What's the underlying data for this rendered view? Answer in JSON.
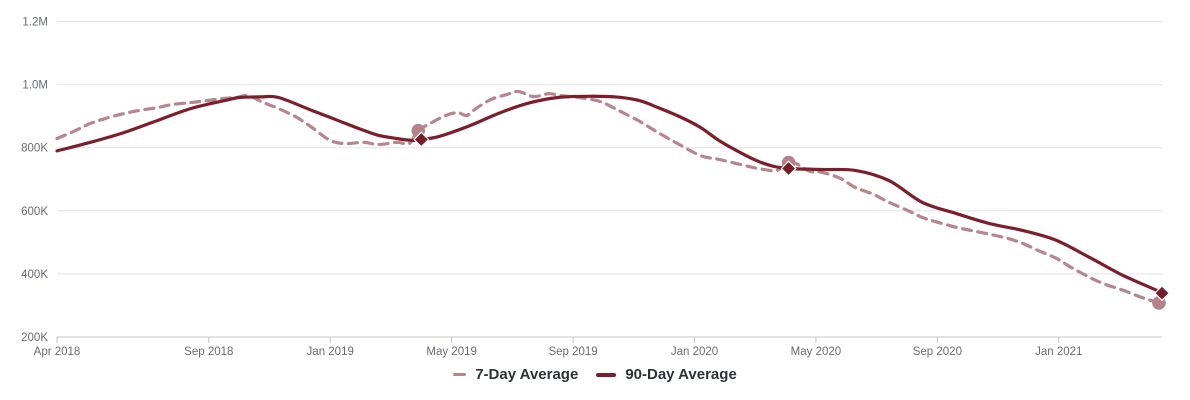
{
  "chart_data": {
    "type": "line",
    "title": "",
    "xlabel": "",
    "ylabel": "",
    "grid": true,
    "legend_position": "bottom-center",
    "x_axis": {
      "unit": "months since Apr 2018",
      "domain": [
        0,
        36.4
      ],
      "ticks": [
        {
          "m": 0,
          "label": "Apr 2018"
        },
        {
          "m": 5,
          "label": "Sep 2018"
        },
        {
          "m": 9,
          "label": "Jan 2019"
        },
        {
          "m": 13,
          "label": "May 2019"
        },
        {
          "m": 17,
          "label": "Sep 2019"
        },
        {
          "m": 21,
          "label": "Jan 2020"
        },
        {
          "m": 25,
          "label": "May 2020"
        },
        {
          "m": 29,
          "label": "Sep 2020"
        },
        {
          "m": 33,
          "label": "Jan 2021"
        }
      ]
    },
    "y_axis": {
      "domain": [
        200000,
        1200000
      ],
      "ticks": [
        {
          "v": 200000,
          "label": "200K"
        },
        {
          "v": 400000,
          "label": "400K"
        },
        {
          "v": 600000,
          "label": "600K"
        },
        {
          "v": 800000,
          "label": "800K"
        },
        {
          "v": 1000000,
          "label": "1.0M"
        },
        {
          "v": 1200000,
          "label": "1.2M"
        }
      ]
    },
    "colors": {
      "grid": "#e4e4e4",
      "axis": "#c6c6c6",
      "axis_text": "#686c71",
      "legend_text": "#2e3237"
    },
    "series": [
      {
        "name": "7-Day Average",
        "style": "dashed",
        "color": "#b5868e",
        "marker": "circle",
        "marker_color": "#b2838b",
        "points": [
          [
            0,
            829000
          ],
          [
            0.6,
            854000
          ],
          [
            1.1,
            877000
          ],
          [
            1.6,
            893000
          ],
          [
            2.2,
            908000
          ],
          [
            2.7,
            918000
          ],
          [
            3.3,
            927000
          ],
          [
            3.8,
            937000
          ],
          [
            4.4,
            943000
          ],
          [
            4.9,
            949000
          ],
          [
            5.5,
            956000
          ],
          [
            5.9,
            959000
          ],
          [
            6.3,
            965000
          ],
          [
            6.8,
            943000
          ],
          [
            7.3,
            924000
          ],
          [
            7.9,
            896000
          ],
          [
            8.4,
            864000
          ],
          [
            9.0,
            823000
          ],
          [
            9.5,
            813000
          ],
          [
            10.1,
            817000
          ],
          [
            10.6,
            810000
          ],
          [
            11.2,
            817000
          ],
          [
            11.6,
            813000
          ],
          [
            11.9,
            854000
          ],
          [
            12.3,
            877000
          ],
          [
            12.8,
            902000
          ],
          [
            13.2,
            911000
          ],
          [
            13.5,
            902000
          ],
          [
            13.8,
            924000
          ],
          [
            14.3,
            953000
          ],
          [
            14.8,
            968000
          ],
          [
            15.2,
            978000
          ],
          [
            15.7,
            962000
          ],
          [
            16.2,
            971000
          ],
          [
            16.6,
            965000
          ],
          [
            17.2,
            959000
          ],
          [
            17.9,
            946000
          ],
          [
            18.5,
            918000
          ],
          [
            19.2,
            883000
          ],
          [
            19.8,
            848000
          ],
          [
            20.5,
            810000
          ],
          [
            21.2,
            775000
          ],
          [
            21.8,
            763000
          ],
          [
            22.5,
            747000
          ],
          [
            23.1,
            734000
          ],
          [
            23.7,
            728000
          ],
          [
            24.1,
            753000
          ],
          [
            24.4,
            747000
          ],
          [
            24.8,
            725000
          ],
          [
            25.2,
            722000
          ],
          [
            25.8,
            703000
          ],
          [
            26.3,
            674000
          ],
          [
            26.9,
            652000
          ],
          [
            27.4,
            627000
          ],
          [
            28.0,
            602000
          ],
          [
            28.5,
            579000
          ],
          [
            29.0,
            564000
          ],
          [
            29.6,
            548000
          ],
          [
            30.1,
            538000
          ],
          [
            30.7,
            526000
          ],
          [
            31.3,
            513000
          ],
          [
            31.8,
            497000
          ],
          [
            32.3,
            475000
          ],
          [
            32.9,
            450000
          ],
          [
            33.4,
            421000
          ],
          [
            34.0,
            390000
          ],
          [
            34.5,
            368000
          ],
          [
            35.1,
            349000
          ],
          [
            35.6,
            330000
          ],
          [
            36.0,
            317000
          ],
          [
            36.3,
            308000
          ]
        ],
        "highlight_points": [
          [
            11.9,
            854000
          ],
          [
            24.1,
            753000
          ],
          [
            36.3,
            308000
          ]
        ]
      },
      {
        "name": "90-Day Average",
        "style": "solid",
        "color": "#7d1e2d",
        "marker": "diamond",
        "marker_color": "#771c29",
        "points": [
          [
            0,
            790000
          ],
          [
            1.1,
            817000
          ],
          [
            2.2,
            848000
          ],
          [
            3.3,
            886000
          ],
          [
            4.4,
            924000
          ],
          [
            5.5,
            949000
          ],
          [
            6.0,
            959000
          ],
          [
            6.7,
            961000
          ],
          [
            7.3,
            959000
          ],
          [
            8.4,
            918000
          ],
          [
            9.0,
            896000
          ],
          [
            9.5,
            877000
          ],
          [
            10.1,
            855000
          ],
          [
            10.6,
            839000
          ],
          [
            11.2,
            829000
          ],
          [
            11.7,
            823000
          ],
          [
            12.0,
            826000
          ],
          [
            12.6,
            836000
          ],
          [
            13.6,
            870000
          ],
          [
            14.6,
            911000
          ],
          [
            15.6,
            943000
          ],
          [
            16.5,
            959000
          ],
          [
            17.5,
            963000
          ],
          [
            18.5,
            960000
          ],
          [
            19.2,
            949000
          ],
          [
            19.8,
            927000
          ],
          [
            20.5,
            899000
          ],
          [
            21.2,
            864000
          ],
          [
            21.8,
            823000
          ],
          [
            22.5,
            785000
          ],
          [
            23.1,
            757000
          ],
          [
            23.6,
            741000
          ],
          [
            24.1,
            734000
          ],
          [
            25.2,
            731000
          ],
          [
            26.3,
            728000
          ],
          [
            27.4,
            696000
          ],
          [
            28.5,
            627000
          ],
          [
            29.6,
            592000
          ],
          [
            30.7,
            560000
          ],
          [
            31.8,
            538000
          ],
          [
            32.9,
            507000
          ],
          [
            34.0,
            453000
          ],
          [
            35.1,
            396000
          ],
          [
            36.2,
            349000
          ],
          [
            36.4,
            339000
          ]
        ],
        "highlight_points": [
          [
            12.0,
            826000
          ],
          [
            24.1,
            734000
          ],
          [
            36.4,
            339000
          ]
        ]
      }
    ]
  },
  "legend": {
    "items": [
      {
        "label": "7-Day Average"
      },
      {
        "label": "90-Day Average"
      }
    ]
  }
}
